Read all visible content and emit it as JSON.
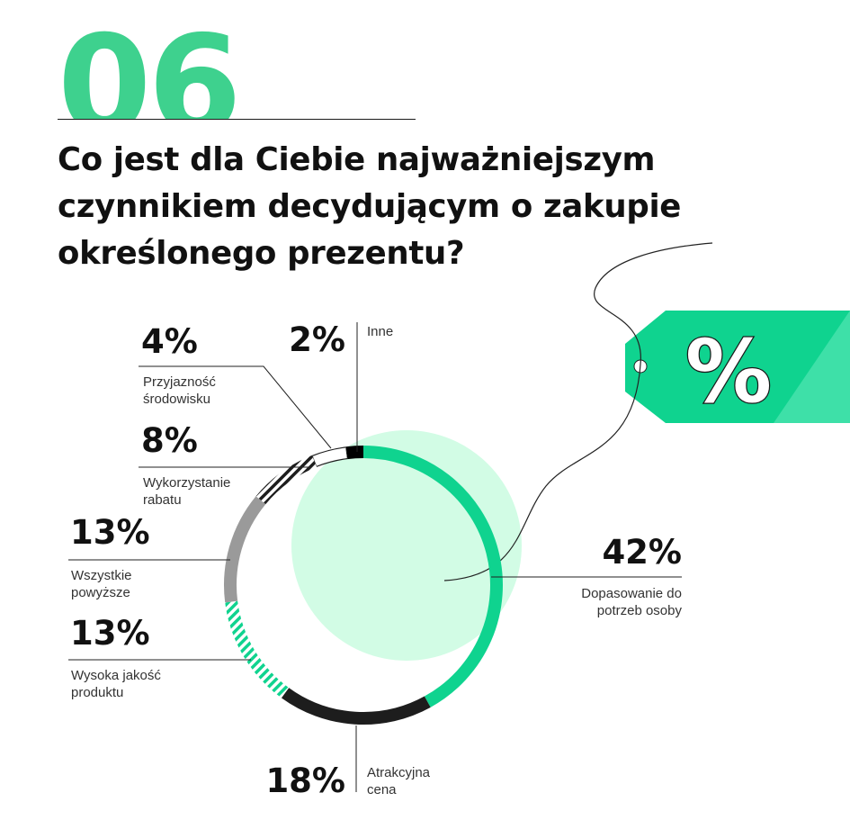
{
  "header": {
    "number": "06",
    "question": "Co jest dla Ciebie najważniejszym czynnikiem decydującym o zakupie określonego prezentu?"
  },
  "tag": {
    "symbol": "%"
  },
  "colors": {
    "accent": "#3ed18e",
    "ring_green": "#0fd38f",
    "disc": "#d2fce5",
    "dark": "#1d1d1d",
    "gray": "#9a9a9a"
  },
  "chart_data": {
    "type": "pie",
    "style": "donut",
    "title": "Co jest dla Ciebie najważniejszym czynnikiem decydującym o zakupie określonego prezentu?",
    "unit": "%",
    "slices": [
      {
        "label": "Dopasowanie do potrzeb osoby",
        "value": 42,
        "value_label": "42%",
        "color": "#0fd38f",
        "pattern": "solid"
      },
      {
        "label": "Atrakcyjna cena",
        "value": 18,
        "value_label": "18%",
        "color": "#1d1d1d",
        "pattern": "solid"
      },
      {
        "label": "Wysoka jakość produktu",
        "value": 13,
        "value_label": "13%",
        "color": "#0fd38f",
        "pattern": "hatch"
      },
      {
        "label": "Wszystkie powyższe",
        "value": 13,
        "value_label": "13%",
        "color": "#9a9a9a",
        "pattern": "solid"
      },
      {
        "label": "Wykorzystanie rabatu",
        "value": 8,
        "value_label": "8%",
        "color": "#1d1d1d",
        "pattern": "hatch"
      },
      {
        "label": "Przyjazność środowisku",
        "value": 4,
        "value_label": "4%",
        "color": "#ffffff",
        "pattern": "outline"
      },
      {
        "label": "Inne",
        "value": 2,
        "value_label": "2%",
        "color": "#000000",
        "pattern": "solid"
      }
    ]
  }
}
